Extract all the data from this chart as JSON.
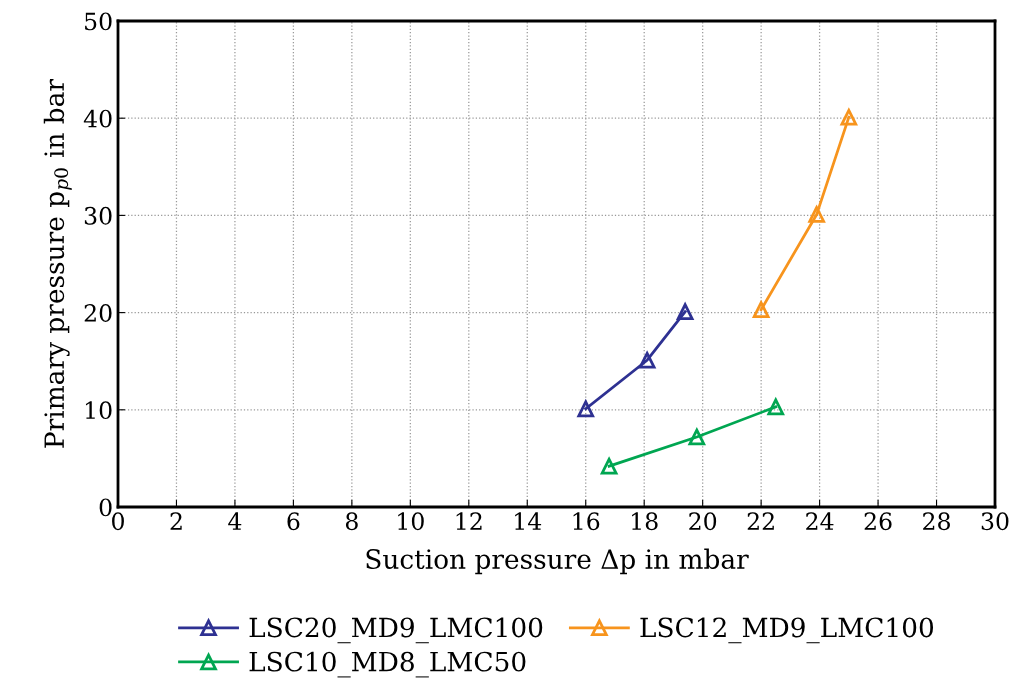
{
  "chart_data": {
    "type": "line",
    "xlabel": "Suction pressure Δp in mbar",
    "ylabel": "Primary pressure p$_{p0}$ in bar",
    "xlim": [
      0,
      30
    ],
    "xticks": [
      0,
      2,
      4,
      6,
      8,
      10,
      12,
      14,
      16,
      18,
      20,
      22,
      24,
      26,
      28,
      30
    ],
    "ylim": [
      0,
      50
    ],
    "yticks": [
      0,
      10,
      20,
      30,
      40,
      50
    ],
    "grid": true,
    "legend": "bottom",
    "marker": "triangle",
    "line_style": "solid",
    "series": [
      {
        "name": "LSC20_MD9_LMC100",
        "color": "#2e3192",
        "x": [
          16,
          18.1,
          19.4
        ],
        "values": [
          10.1,
          15.1,
          20.1
        ]
      },
      {
        "name": "LSC12_MD9_LMC100",
        "color": "#f7941d",
        "x": [
          22,
          23.9,
          25
        ],
        "values": [
          20.3,
          30.1,
          40.1
        ]
      },
      {
        "name": "LSC10_MD8_LMC50",
        "color": "#00a651",
        "x": [
          16.8,
          19.8,
          22.5
        ],
        "values": [
          4.2,
          7.2,
          10.3
        ]
      }
    ]
  }
}
